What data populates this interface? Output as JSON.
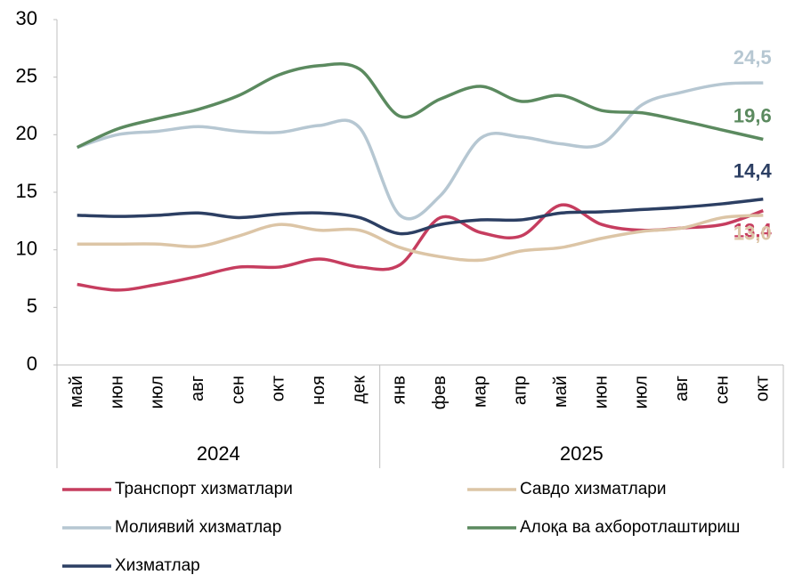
{
  "chart_data": {
    "type": "line",
    "category_groups": [
      {
        "label": "2024",
        "categories": [
          "май",
          "июн",
          "июл",
          "авг",
          "сен",
          "окт",
          "ноя",
          "дек"
        ]
      },
      {
        "label": "2025",
        "categories": [
          "янв",
          "фев",
          "мар",
          "апр",
          "май",
          "июн",
          "июл",
          "авг",
          "сен",
          "окт"
        ]
      }
    ],
    "ylim": [
      0,
      30
    ],
    "yticks": [
      0,
      5,
      10,
      15,
      20,
      25,
      30
    ],
    "series": [
      {
        "name": "Транспорт хизматлари",
        "color": "#c63d5f",
        "values": [
          7.0,
          6.5,
          7.0,
          7.7,
          8.5,
          8.5,
          9.2,
          8.5,
          8.7,
          12.8,
          11.5,
          11.2,
          13.9,
          12.2,
          11.7,
          11.9,
          12.2,
          13.4
        ],
        "value_labels": [
          null,
          null,
          null,
          null,
          null,
          null,
          null,
          null,
          null,
          null,
          null,
          null,
          null,
          null,
          null,
          null,
          null,
          "13,4"
        ]
      },
      {
        "name": "Савдо хизматлари",
        "color": "#dcc5a6",
        "values": [
          10.5,
          10.5,
          10.5,
          10.3,
          11.2,
          12.2,
          11.7,
          11.7,
          10.2,
          9.4,
          9.1,
          9.9,
          10.2,
          11.0,
          11.6,
          11.9,
          12.8,
          13.0
        ],
        "value_labels": [
          null,
          null,
          null,
          null,
          null,
          null,
          null,
          null,
          null,
          null,
          null,
          null,
          null,
          null,
          null,
          null,
          null,
          "13,0"
        ]
      },
      {
        "name": "Молиявий хизматлар",
        "color": "#b6c7d2",
        "values": [
          18.9,
          20.0,
          20.3,
          20.7,
          20.3,
          20.2,
          20.8,
          20.6,
          13.0,
          14.7,
          19.7,
          19.8,
          19.2,
          19.2,
          22.6,
          23.7,
          24.4,
          24.5
        ],
        "value_labels": [
          null,
          null,
          null,
          null,
          null,
          null,
          null,
          null,
          null,
          null,
          null,
          null,
          null,
          null,
          null,
          null,
          null,
          "24,5"
        ]
      },
      {
        "name": "Алоқа ва ахборотлаштириш",
        "color": "#5b8a5f",
        "values": [
          18.9,
          20.5,
          21.4,
          22.2,
          23.4,
          25.2,
          26.0,
          25.7,
          21.6,
          23.1,
          24.2,
          22.9,
          23.4,
          22.1,
          21.9,
          21.2,
          20.4,
          19.6
        ],
        "value_labels": [
          null,
          null,
          null,
          null,
          null,
          null,
          null,
          null,
          null,
          null,
          null,
          null,
          null,
          null,
          null,
          null,
          null,
          "19,6"
        ]
      },
      {
        "name": "Хизматлар",
        "color": "#2c3f63",
        "values": [
          13.0,
          12.9,
          13.0,
          13.2,
          12.8,
          13.1,
          13.2,
          12.8,
          11.4,
          12.2,
          12.6,
          12.6,
          13.2,
          13.3,
          13.5,
          13.7,
          14.0,
          14.4
        ],
        "value_labels": [
          null,
          null,
          null,
          null,
          null,
          null,
          null,
          null,
          null,
          null,
          null,
          null,
          null,
          null,
          null,
          null,
          null,
          "14,4"
        ]
      }
    ]
  }
}
